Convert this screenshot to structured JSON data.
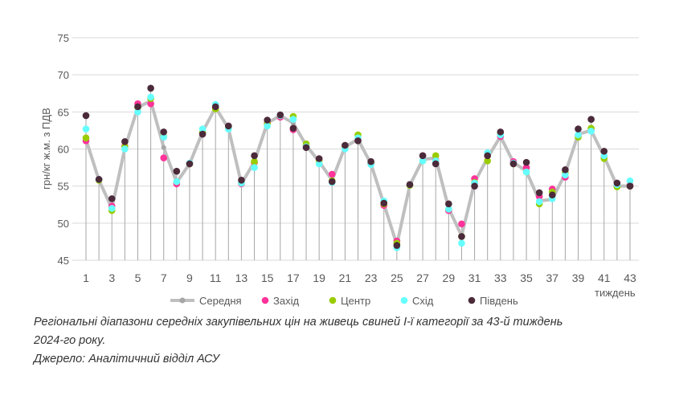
{
  "chart_data": {
    "type": "line",
    "ylabel": "грн/кг ж.м. з ПДВ",
    "xlabel": "тиждень",
    "ylim": [
      45,
      75
    ],
    "yticks": [
      45,
      50,
      55,
      60,
      65,
      70,
      75
    ],
    "xticks": [
      1,
      3,
      5,
      7,
      9,
      11,
      13,
      15,
      17,
      19,
      21,
      23,
      25,
      27,
      29,
      31,
      33,
      35,
      37,
      39,
      41,
      43
    ],
    "x": [
      1,
      2,
      3,
      4,
      5,
      6,
      7,
      8,
      9,
      10,
      11,
      12,
      13,
      14,
      15,
      16,
      17,
      18,
      19,
      20,
      21,
      22,
      23,
      24,
      25,
      26,
      27,
      28,
      29,
      30,
      31,
      32,
      33,
      34,
      35,
      36,
      37,
      38,
      39,
      40,
      41,
      42,
      43
    ],
    "grid": "horizontal",
    "legend": "bottom",
    "series": [
      {
        "name": "Середня",
        "color": "#bfbfbf",
        "style": "line",
        "values": [
          61.3,
          55.8,
          52.0,
          60.1,
          65.6,
          66.5,
          60.2,
          55.5,
          58.0,
          62.3,
          65.6,
          62.8,
          55.3,
          58.3,
          63.5,
          64.5,
          63.5,
          60.5,
          58.3,
          55.8,
          60.3,
          61.3,
          58.0,
          52.6,
          47.1,
          55.1,
          58.6,
          58.8,
          52.0,
          48.3,
          55.5,
          58.8,
          61.7,
          58.2,
          57.0,
          53.0,
          53.2,
          56.7,
          62.0,
          62.5,
          59.0,
          55.0,
          55.0
        ]
      },
      {
        "name": "Захід",
        "color": "#ff3399",
        "style": "marker",
        "values": [
          61.1,
          55.9,
          52.3,
          60.4,
          66.1,
          66.1,
          58.8,
          55.3,
          58.0,
          62.2,
          65.6,
          63.1,
          55.3,
          58.2,
          63.5,
          64.3,
          62.6,
          60.4,
          58.6,
          56.6,
          60.3,
          61.2,
          58.0,
          52.4,
          47.6,
          55.2,
          59.1,
          58.5,
          51.7,
          49.9,
          56.0,
          59.1,
          61.7,
          58.3,
          57.5,
          53.6,
          54.6,
          56.2,
          61.8,
          62.6,
          58.9,
          55.0,
          55.1
        ]
      },
      {
        "name": "Центр",
        "color": "#99cc00",
        "style": "marker",
        "values": [
          61.5,
          55.8,
          51.7,
          60.3,
          65.6,
          66.8,
          61.7,
          55.6,
          58.0,
          62.2,
          65.4,
          63.0,
          55.4,
          58.3,
          63.4,
          64.5,
          64.4,
          60.7,
          58.4,
          55.7,
          60.2,
          61.9,
          58.1,
          52.6,
          47.3,
          55.1,
          58.4,
          59.1,
          51.9,
          48.2,
          55.5,
          58.4,
          62.0,
          58.0,
          56.9,
          52.6,
          54.2,
          56.8,
          61.6,
          62.8,
          58.7,
          54.9,
          55.0
        ]
      },
      {
        "name": "Схід",
        "color": "#66ffff",
        "style": "marker",
        "values": [
          62.7,
          55.9,
          52.0,
          60.0,
          65.0,
          67.0,
          61.6,
          55.6,
          58.1,
          62.7,
          66.0,
          62.7,
          55.4,
          57.5,
          63.1,
          64.5,
          64.0,
          60.3,
          58.0,
          55.5,
          60.0,
          61.5,
          57.9,
          53.0,
          46.7,
          55.2,
          58.4,
          58.4,
          51.9,
          47.3,
          55.4,
          59.5,
          61.9,
          58.1,
          56.9,
          52.9,
          53.3,
          56.5,
          61.9,
          62.4,
          59.1,
          55.2,
          55.7
        ]
      },
      {
        "name": "Південь",
        "color": "#4b2a3a",
        "style": "marker",
        "values": [
          64.5,
          55.9,
          53.3,
          61.0,
          65.7,
          68.2,
          62.3,
          57.0,
          58.0,
          62.0,
          65.7,
          63.1,
          55.8,
          59.1,
          63.9,
          64.6,
          62.8,
          60.2,
          58.7,
          55.6,
          60.5,
          61.1,
          58.3,
          52.7,
          47.0,
          55.2,
          59.1,
          58.0,
          52.6,
          48.2,
          55.0,
          59.1,
          62.3,
          58.0,
          58.2,
          54.1,
          53.8,
          57.2,
          62.7,
          64.0,
          59.7,
          55.4,
          55.0
        ]
      }
    ]
  },
  "caption": {
    "line1": "Регіональні діапазони середніх закупівельних цін на живець свиней І-ї категорії за 43-й тиждень",
    "line2": "2024-го року.",
    "source": "Джерело: Аналітичний відділ АСУ"
  }
}
